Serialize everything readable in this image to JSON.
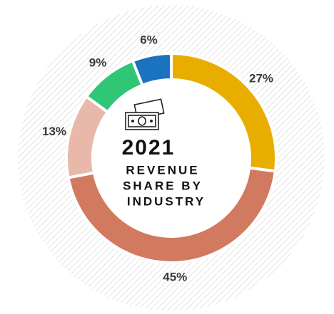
{
  "chart_data": {
    "type": "donut",
    "title": "2021",
    "subtitle_lines": [
      "REVENUE",
      "SHARE BY",
      "INDUSTRY"
    ],
    "values": [
      27,
      45,
      13,
      9,
      6
    ],
    "value_labels": [
      "27%",
      "45%",
      "13%",
      "9%",
      "6%"
    ],
    "colors": [
      "#e9ad00",
      "#d27a60",
      "#e8b9aa",
      "#2fc776",
      "#1b72c0"
    ]
  }
}
